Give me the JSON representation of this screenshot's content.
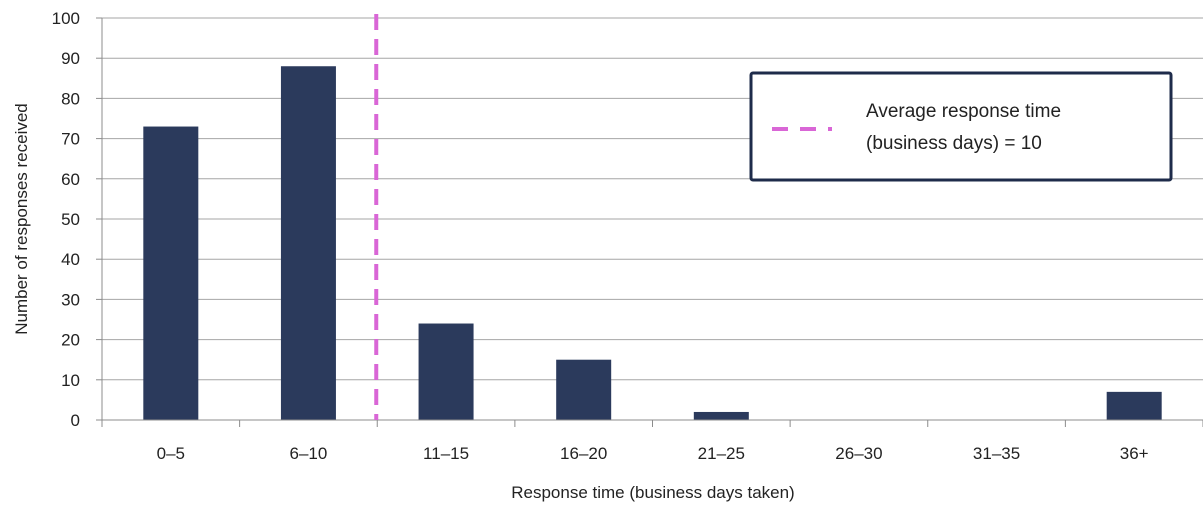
{
  "chart_data": {
    "type": "bar",
    "categories": [
      "0–5",
      "6–10",
      "11–15",
      "16–20",
      "21–25",
      "26–30",
      "31–35",
      "36+"
    ],
    "values": [
      73,
      88,
      24,
      15,
      2,
      0,
      0,
      7
    ],
    "xlabel": "Response time (business days taken)",
    "ylabel": "Number  of responses received",
    "ylim": [
      0,
      100
    ],
    "yticks": [
      0,
      10,
      20,
      30,
      40,
      50,
      60,
      70,
      80,
      90,
      100
    ],
    "grid": true,
    "bar_color": "#2b3a5c",
    "reference_line": {
      "value": 10,
      "color": "#d966d6",
      "style": "dashed",
      "legend_line1": "Average response  time",
      "legend_line2": "(business  days) = 10"
    },
    "legend_position": "top-right"
  }
}
